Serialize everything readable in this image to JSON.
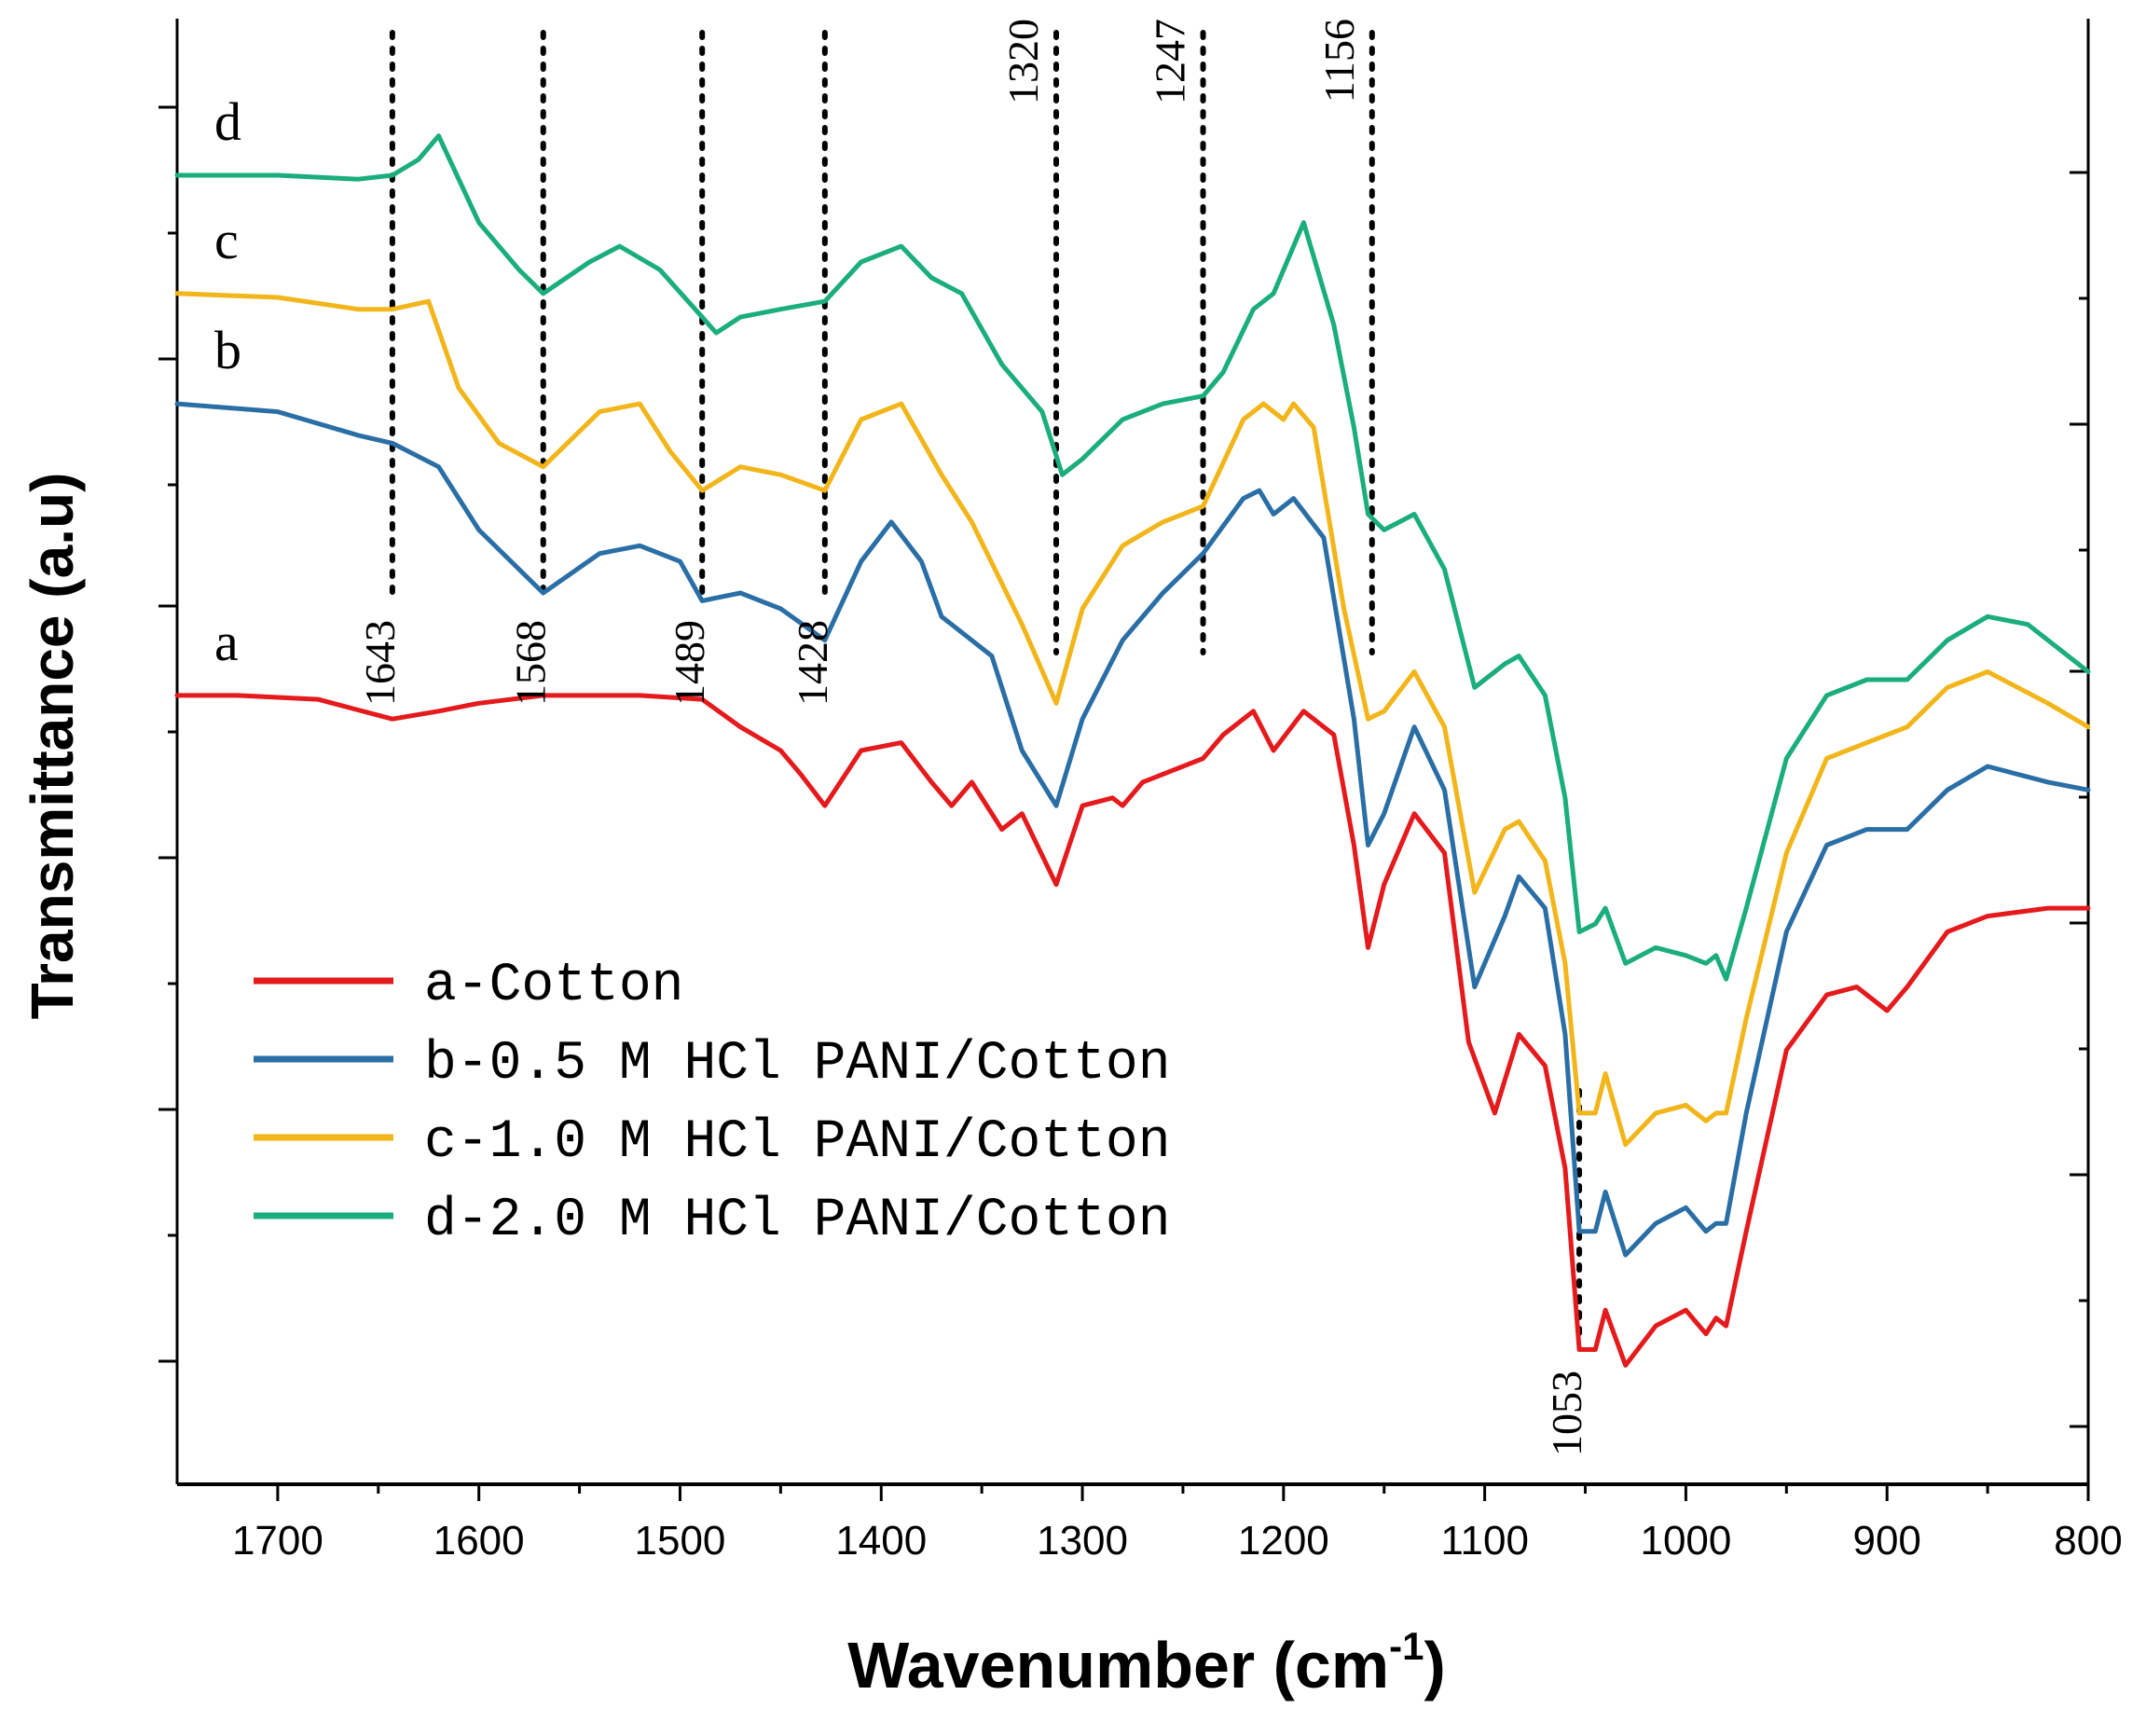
{
  "chart_data": {
    "type": "line",
    "xlabel": "Wavenumber (cm",
    "xlabel_superscript": "-1",
    "xlabel_close": ")",
    "ylabel": "Transmittance (a.u)",
    "xlim": [
      1750,
      800
    ],
    "x_reversed": true,
    "x_ticks": [
      1700,
      1600,
      1500,
      1400,
      1300,
      1200,
      1100,
      1000,
      900,
      800
    ],
    "y_tick_labels": "none",
    "grid": false,
    "legend_position": "bottom-left",
    "series": [
      {
        "name": "a-Cotton",
        "curve_label": "a",
        "color": "#e41a1c",
        "x": [
          1750,
          1720,
          1680,
          1643,
          1620,
          1600,
          1568,
          1520,
          1489,
          1470,
          1450,
          1440,
          1428,
          1410,
          1390,
          1375,
          1365,
          1355,
          1340,
          1330,
          1313,
          1300,
          1285,
          1280,
          1270,
          1260,
          1250,
          1240,
          1230,
          1215,
          1205,
          1190,
          1175,
          1165,
          1158,
          1150,
          1135,
          1120,
          1108,
          1095,
          1083,
          1070,
          1060,
          1053,
          1045,
          1040,
          1030,
          1015,
          1000,
          990,
          985,
          980,
          970,
          950,
          930,
          915,
          900,
          890,
          870,
          850,
          820,
          800
        ],
        "y": [
          9.3,
          9.3,
          9.25,
          9.0,
          9.1,
          9.2,
          9.3,
          9.3,
          9.25,
          8.9,
          8.6,
          8.3,
          7.9,
          8.6,
          8.7,
          8.2,
          7.9,
          8.2,
          7.6,
          7.8,
          6.9,
          7.9,
          8.0,
          7.9,
          8.2,
          8.3,
          8.4,
          8.5,
          8.8,
          9.1,
          8.6,
          9.1,
          8.8,
          7.4,
          6.1,
          6.9,
          7.8,
          7.3,
          4.9,
          4.0,
          5.0,
          4.6,
          3.3,
          1.0,
          1.0,
          1.5,
          0.8,
          1.3,
          1.5,
          1.2,
          1.4,
          1.3,
          2.5,
          4.8,
          5.5,
          5.6,
          5.3,
          5.6,
          6.3,
          6.5,
          6.6,
          6.6
        ]
      },
      {
        "name": "b-0.5 M HCl PANI/Cotton",
        "curve_label": "b",
        "color": "#2a6ea6",
        "x": [
          1750,
          1700,
          1660,
          1643,
          1620,
          1600,
          1568,
          1540,
          1520,
          1500,
          1489,
          1470,
          1450,
          1428,
          1410,
          1395,
          1380,
          1370,
          1345,
          1330,
          1313,
          1300,
          1280,
          1260,
          1240,
          1220,
          1212,
          1205,
          1195,
          1180,
          1165,
          1158,
          1150,
          1135,
          1120,
          1105,
          1090,
          1083,
          1070,
          1060,
          1053,
          1045,
          1040,
          1030,
          1015,
          1000,
          990,
          985,
          980,
          970,
          950,
          930,
          910,
          890,
          870,
          850,
          820,
          800
        ],
        "y": [
          13.0,
          12.9,
          12.6,
          12.5,
          12.2,
          11.4,
          10.6,
          11.1,
          11.2,
          11.0,
          10.5,
          10.6,
          10.4,
          10.0,
          11.0,
          11.5,
          11.0,
          10.3,
          9.8,
          8.6,
          7.9,
          9.0,
          10.0,
          10.6,
          11.1,
          11.8,
          11.9,
          11.6,
          11.8,
          11.3,
          9.0,
          7.4,
          7.8,
          8.9,
          8.1,
          5.6,
          6.5,
          7.0,
          6.6,
          5.0,
          2.5,
          2.5,
          3.0,
          2.2,
          2.6,
          2.8,
          2.5,
          2.6,
          2.6,
          4.0,
          6.3,
          7.4,
          7.6,
          7.6,
          8.1,
          8.4,
          8.2,
          8.1
        ]
      },
      {
        "name": "c-1.0 M HCl PANI/Cotton",
        "curve_label": "c",
        "color": "#f2b51a",
        "x": [
          1750,
          1700,
          1660,
          1643,
          1625,
          1610,
          1590,
          1568,
          1540,
          1520,
          1505,
          1489,
          1470,
          1450,
          1428,
          1410,
          1390,
          1370,
          1355,
          1330,
          1313,
          1300,
          1280,
          1260,
          1240,
          1220,
          1210,
          1200,
          1195,
          1185,
          1170,
          1158,
          1150,
          1135,
          1120,
          1105,
          1090,
          1083,
          1070,
          1060,
          1053,
          1045,
          1040,
          1030,
          1015,
          1000,
          990,
          985,
          980,
          970,
          950,
          930,
          910,
          890,
          870,
          850,
          820,
          800
        ],
        "y": [
          14.4,
          14.35,
          14.2,
          14.2,
          14.3,
          13.2,
          12.5,
          12.2,
          12.9,
          13.0,
          12.4,
          11.9,
          12.2,
          12.1,
          11.9,
          12.8,
          13.0,
          12.1,
          11.5,
          10.2,
          9.2,
          10.4,
          11.2,
          11.5,
          11.7,
          12.8,
          13.0,
          12.8,
          13.0,
          12.7,
          10.4,
          9.0,
          9.1,
          9.6,
          8.9,
          6.8,
          7.6,
          7.7,
          7.2,
          5.9,
          4.0,
          4.0,
          4.5,
          3.6,
          4.0,
          4.1,
          3.9,
          4.0,
          4.0,
          5.2,
          7.3,
          8.5,
          8.7,
          8.9,
          9.4,
          9.6,
          9.2,
          8.9
        ]
      },
      {
        "name": "d-2.0 M HCl PANI/Cotton",
        "curve_label": "d",
        "color": "#1aad7d",
        "x": [
          1750,
          1700,
          1660,
          1643,
          1630,
          1620,
          1600,
          1580,
          1568,
          1545,
          1530,
          1510,
          1489,
          1482,
          1470,
          1450,
          1428,
          1410,
          1390,
          1375,
          1360,
          1340,
          1320,
          1310,
          1300,
          1280,
          1260,
          1240,
          1230,
          1215,
          1205,
          1195,
          1190,
          1175,
          1165,
          1158,
          1150,
          1135,
          1120,
          1105,
          1090,
          1083,
          1070,
          1060,
          1053,
          1045,
          1040,
          1030,
          1015,
          1000,
          990,
          985,
          980,
          970,
          950,
          930,
          910,
          890,
          870,
          850,
          830,
          800
        ],
        "y": [
          15.9,
          15.9,
          15.85,
          15.9,
          16.1,
          16.4,
          15.3,
          14.7,
          14.4,
          14.8,
          15.0,
          14.7,
          14.1,
          13.9,
          14.1,
          14.2,
          14.3,
          14.8,
          15.0,
          14.6,
          14.4,
          13.5,
          12.9,
          12.1,
          12.3,
          12.8,
          13.0,
          13.1,
          13.4,
          14.2,
          14.4,
          15.0,
          15.3,
          14.0,
          12.7,
          11.6,
          11.4,
          11.6,
          10.9,
          9.4,
          9.7,
          9.8,
          9.3,
          8.0,
          6.3,
          6.4,
          6.6,
          5.9,
          6.1,
          6.0,
          5.9,
          6.0,
          5.7,
          6.6,
          8.5,
          9.3,
          9.5,
          9.5,
          10.0,
          10.3,
          10.2,
          9.6
        ]
      }
    ],
    "annotations": [
      {
        "label": "1643",
        "x": 1643,
        "text_below": true
      },
      {
        "label": "1568",
        "x": 1568,
        "text_below": true
      },
      {
        "label": "1489",
        "x": 1489,
        "text_below": true
      },
      {
        "label": "1428",
        "x": 1428,
        "text_below": true
      },
      {
        "label": "1320",
        "x": 1313,
        "text_below": false
      },
      {
        "label": "1247",
        "x": 1240,
        "text_below": false
      },
      {
        "label": "1156",
        "x": 1156,
        "text_below": false
      },
      {
        "label": "1053",
        "x": 1053,
        "text_below": true
      }
    ]
  }
}
